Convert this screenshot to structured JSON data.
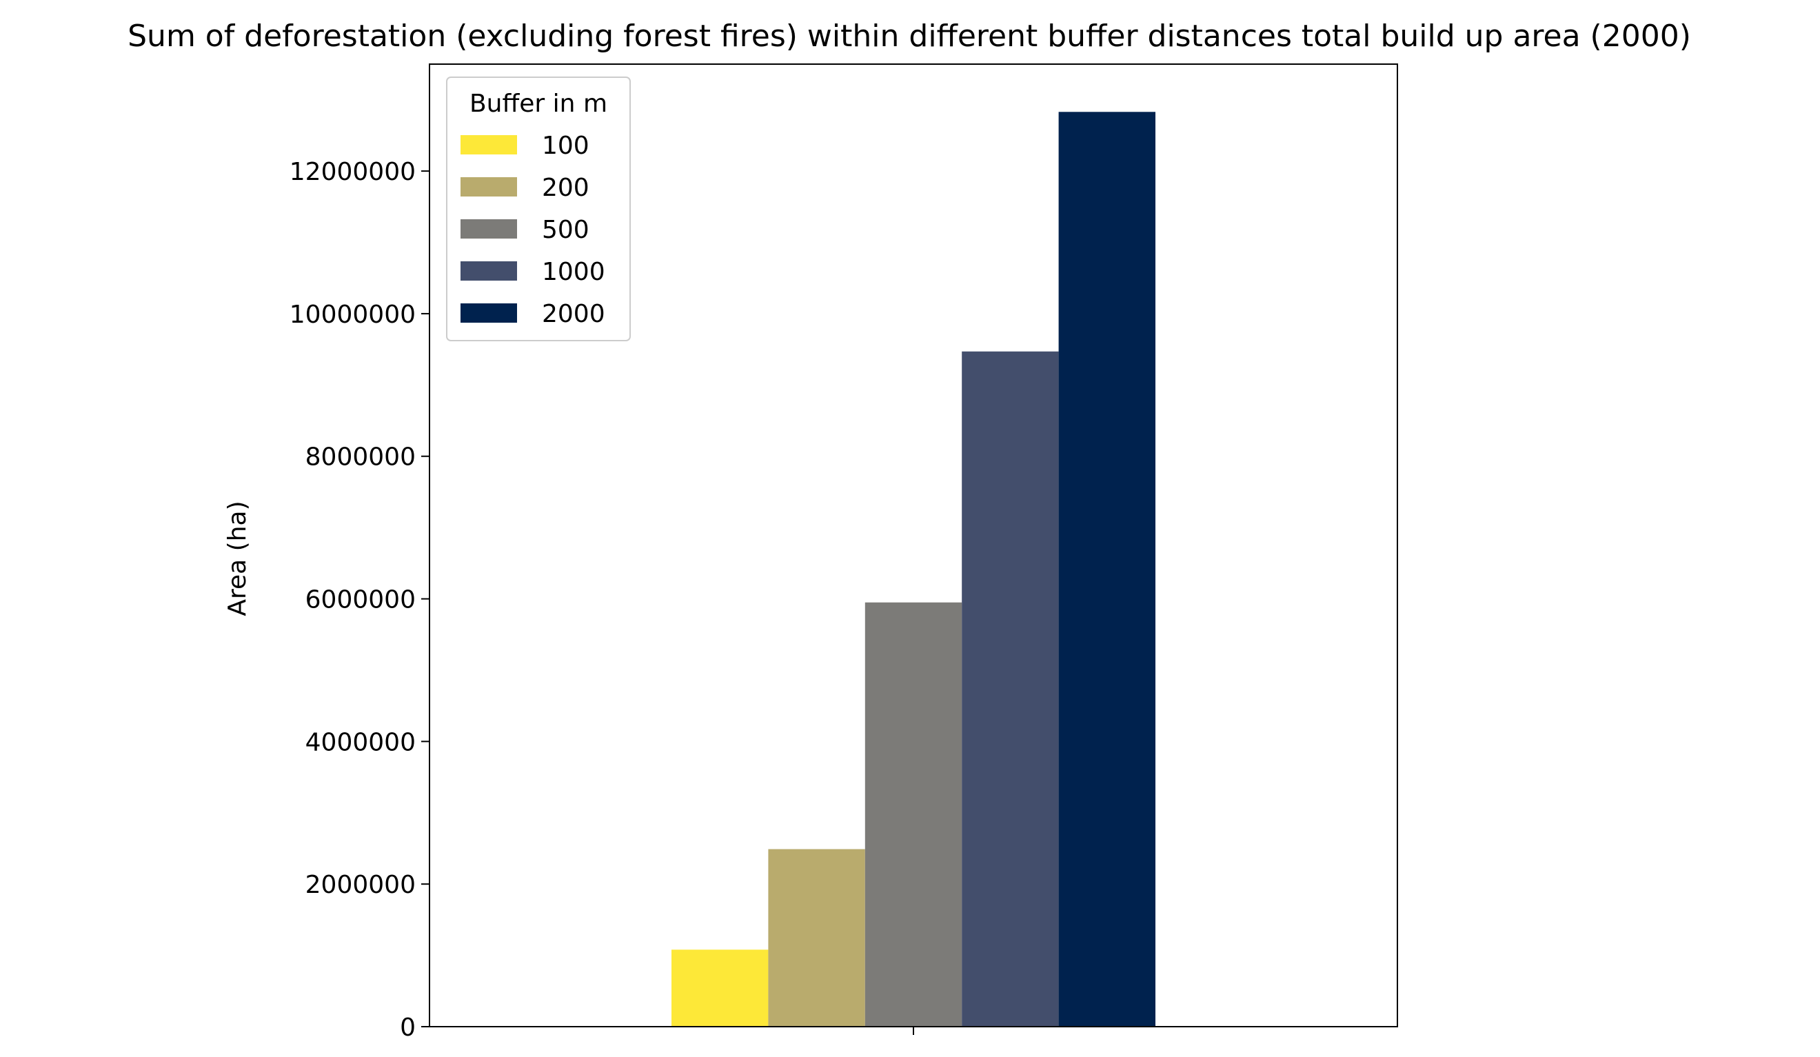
{
  "chart_data": {
    "type": "bar",
    "title": "Sum of deforestation (excluding forest fires) within different buffer distances total build up area (2000)",
    "xlabel": "",
    "ylabel": "Area (ha)",
    "ylim": [
      0,
      13500000
    ],
    "yticks": [
      0,
      2000000,
      4000000,
      6000000,
      8000000,
      10000000,
      12000000
    ],
    "ytick_labels": [
      "0",
      "2000000",
      "4000000",
      "6000000",
      "8000000",
      "10000000",
      "12000000"
    ],
    "categories": [
      ""
    ],
    "grid": false,
    "legend": {
      "title": "Buffer in m",
      "placement": "top-left"
    },
    "series": [
      {
        "name": "100",
        "values": [
          1080000
        ],
        "color": "#fde838"
      },
      {
        "name": "200",
        "values": [
          2490000
        ],
        "color": "#b9ab6d"
      },
      {
        "name": "500",
        "values": [
          5950000
        ],
        "color": "#7c7b78"
      },
      {
        "name": "1000",
        "values": [
          9470000
        ],
        "color": "#434e6c"
      },
      {
        "name": "2000",
        "values": [
          12830000
        ],
        "color": "#00224e"
      }
    ]
  }
}
